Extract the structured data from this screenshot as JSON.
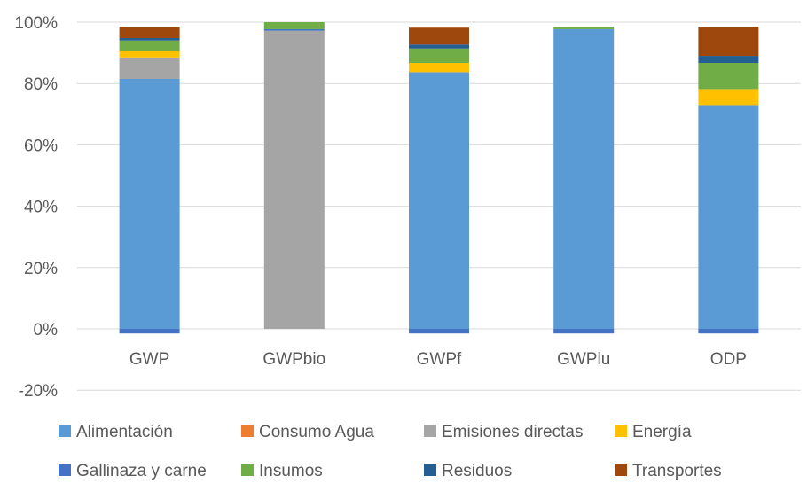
{
  "chart_data": {
    "type": "bar",
    "stacked": true,
    "title": "",
    "xlabel": "",
    "ylabel": "",
    "y_format": "percent",
    "ylim": [
      -20,
      100
    ],
    "yticks": [
      -20,
      0,
      20,
      40,
      60,
      80,
      100
    ],
    "ytick_labels": [
      "-20%",
      "0%",
      "20%",
      "40%",
      "60%",
      "80%",
      "100%"
    ],
    "grid": true,
    "legend_position": "bottom",
    "categories": [
      "GWP",
      "GWPbio",
      "GWPf",
      "GWPlu",
      "ODP"
    ],
    "series": [
      {
        "name": "Alimentación",
        "color": "#5B9BD5",
        "values": [
          81.5,
          0.0,
          83.7,
          97.7,
          72.7
        ]
      },
      {
        "name": "Consumo Agua",
        "color": "#ED7D31",
        "values": [
          0.0,
          0.0,
          0.0,
          0.0,
          0.0
        ]
      },
      {
        "name": "Emisiones directas",
        "color": "#A5A5A5",
        "values": [
          7.0,
          97.2,
          0.0,
          0.0,
          0.0
        ]
      },
      {
        "name": "Energía",
        "color": "#FFC000",
        "values": [
          2.0,
          0.0,
          3.0,
          0.0,
          5.5
        ]
      },
      {
        "name": "Gallinaza y carne",
        "color": "#4472C4",
        "values": [
          -1.5,
          0.5,
          -1.5,
          -1.5,
          -1.5
        ]
      },
      {
        "name": "Insumos",
        "color": "#70AD47",
        "values": [
          3.5,
          2.3,
          4.7,
          0.7,
          8.5
        ]
      },
      {
        "name": "Residuos",
        "color": "#255E91",
        "values": [
          0.8,
          0.0,
          1.3,
          0.1,
          2.3
        ]
      },
      {
        "name": "Transportes",
        "color": "#9E480E",
        "values": [
          3.7,
          0.0,
          5.5,
          0.0,
          9.5
        ]
      }
    ]
  }
}
